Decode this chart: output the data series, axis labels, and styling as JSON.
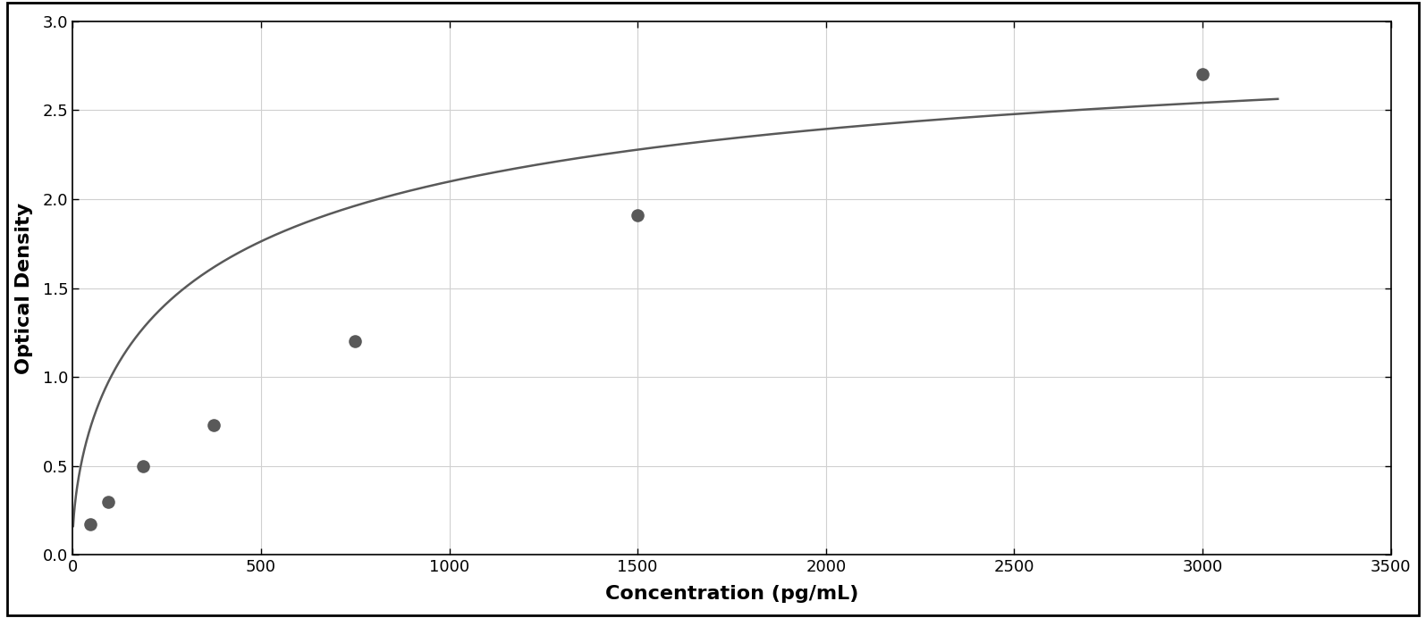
{
  "x_data": [
    46.875,
    93.75,
    187.5,
    375,
    750,
    1500,
    3000
  ],
  "y_data": [
    0.17,
    0.3,
    0.5,
    0.73,
    1.2,
    1.91,
    2.7
  ],
  "xlabel": "Concentration (pg/mL)",
  "ylabel": "Optical Density",
  "xlim": [
    0,
    3500
  ],
  "ylim": [
    0,
    3.0
  ],
  "xticks": [
    0,
    500,
    1000,
    1500,
    2000,
    2500,
    3000,
    3500
  ],
  "yticks": [
    0,
    0.5,
    1.0,
    1.5,
    2.0,
    2.5,
    3.0
  ],
  "point_color": "#595959",
  "line_color": "#595959",
  "background_color": "#ffffff",
  "grid_color": "#d0d0d0",
  "border_color": "#000000",
  "outer_border_color": "#000000",
  "point_size": 90,
  "line_width": 1.8,
  "xlabel_fontsize": 16,
  "ylabel_fontsize": 16,
  "tick_fontsize": 13,
  "xlabel_fontweight": "bold",
  "ylabel_fontweight": "bold"
}
